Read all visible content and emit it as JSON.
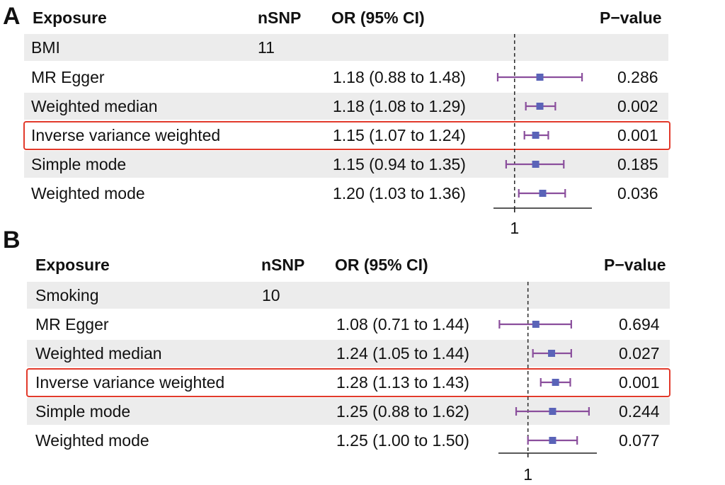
{
  "chart_data": [
    {
      "type": "forest",
      "panel": "A",
      "headers": {
        "exposure": "Exposure",
        "nsnp": "nSNP",
        "or": "OR (95% CI)",
        "p": "P−value"
      },
      "exposure": "BMI",
      "nsnp": "11",
      "reference_line": 1,
      "xtick_label": "1",
      "xlim": [
        0.85,
        1.55
      ],
      "highlight_method": "Inverse variance weighted",
      "rows": [
        {
          "method": "MR Egger",
          "or": 1.18,
          "lo": 0.88,
          "hi": 1.48,
          "or_text": "1.18 (0.88 to 1.48)",
          "p": "0.286"
        },
        {
          "method": "Weighted median",
          "or": 1.18,
          "lo": 1.08,
          "hi": 1.29,
          "or_text": "1.18 (1.08 to 1.29)",
          "p": "0.002"
        },
        {
          "method": "Inverse variance weighted",
          "or": 1.15,
          "lo": 1.07,
          "hi": 1.24,
          "or_text": "1.15 (1.07 to 1.24)",
          "p": "0.001"
        },
        {
          "method": "Simple mode",
          "or": 1.15,
          "lo": 0.94,
          "hi": 1.35,
          "or_text": "1.15 (0.94 to 1.35)",
          "p": "0.185"
        },
        {
          "method": "Weighted mode",
          "or": 1.2,
          "lo": 1.03,
          "hi": 1.36,
          "or_text": "1.20 (1.03 to 1.36)",
          "p": "0.036"
        }
      ]
    },
    {
      "type": "forest",
      "panel": "B",
      "headers": {
        "exposure": "Exposure",
        "nsnp": "nSNP",
        "or": "OR (95% CI)",
        "p": "P−value"
      },
      "exposure": "Smoking",
      "nsnp": "10",
      "reference_line": 1,
      "xtick_label": "1",
      "xlim": [
        0.7,
        1.7
      ],
      "highlight_method": "Inverse variance weighted",
      "rows": [
        {
          "method": "MR Egger",
          "or": 1.08,
          "lo": 0.71,
          "hi": 1.44,
          "or_text": "1.08 (0.71 to 1.44)",
          "p": "0.694"
        },
        {
          "method": "Weighted median",
          "or": 1.24,
          "lo": 1.05,
          "hi": 1.44,
          "or_text": "1.24 (1.05 to 1.44)",
          "p": "0.027"
        },
        {
          "method": "Inverse variance weighted",
          "or": 1.28,
          "lo": 1.13,
          "hi": 1.43,
          "or_text": "1.28 (1.13 to 1.43)",
          "p": "0.001"
        },
        {
          "method": "Simple mode",
          "or": 1.25,
          "lo": 0.88,
          "hi": 1.62,
          "or_text": "1.25 (0.88 to 1.62)",
          "p": "0.244"
        },
        {
          "method": "Weighted mode",
          "or": 1.25,
          "lo": 1.0,
          "hi": 1.5,
          "or_text": "1.25 (1.00 to 1.50)",
          "p": "0.077"
        }
      ]
    }
  ],
  "colors": {
    "ci_line": "#8a4e9c",
    "point": "#5a63b8",
    "highlight_box": "#e23a2b",
    "row_shade": "#ececec"
  }
}
